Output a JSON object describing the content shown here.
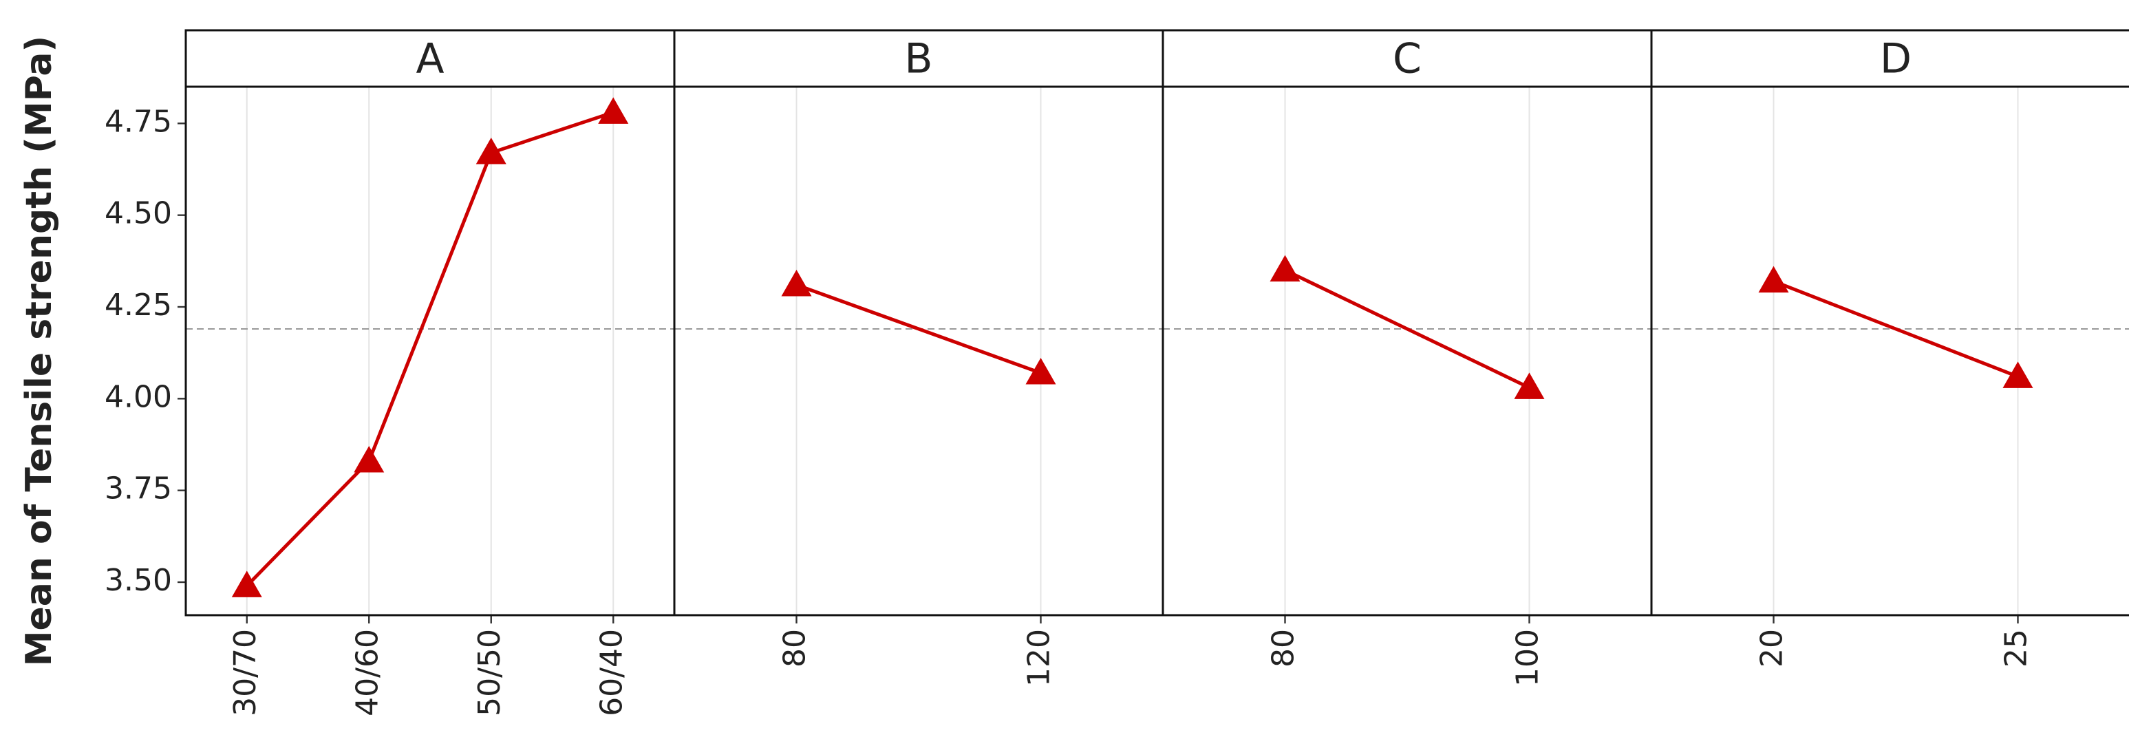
{
  "chart_data": {
    "type": "line",
    "y_label": "Mean of Tensile strength (MPa)",
    "color": "#cc0000",
    "ylim": [
      3.41,
      4.85
    ],
    "yticks": [
      {
        "value": 3.5,
        "label": "3.50"
      },
      3.75,
      {
        "value": 4.0,
        "label": "4.00"
      },
      4.25,
      {
        "value": 4.5,
        "label": "4.50"
      },
      4.75
    ],
    "grid": "x",
    "mean_line": 4.19,
    "panels": [
      {
        "title": "A",
        "categories": [
          "30/70",
          "40/60",
          "50/50",
          "60/40"
        ],
        "values": [
          3.49,
          3.83,
          4.67,
          4.78
        ]
      },
      {
        "title": "B",
        "categories": [
          "80",
          "120"
        ],
        "values": [
          4.31,
          4.07
        ]
      },
      {
        "title": "C",
        "categories": [
          "80",
          "100"
        ],
        "values": [
          4.35,
          4.03
        ]
      },
      {
        "title": "D",
        "categories": [
          "20",
          "25"
        ],
        "values": [
          4.32,
          4.06
        ]
      }
    ]
  }
}
